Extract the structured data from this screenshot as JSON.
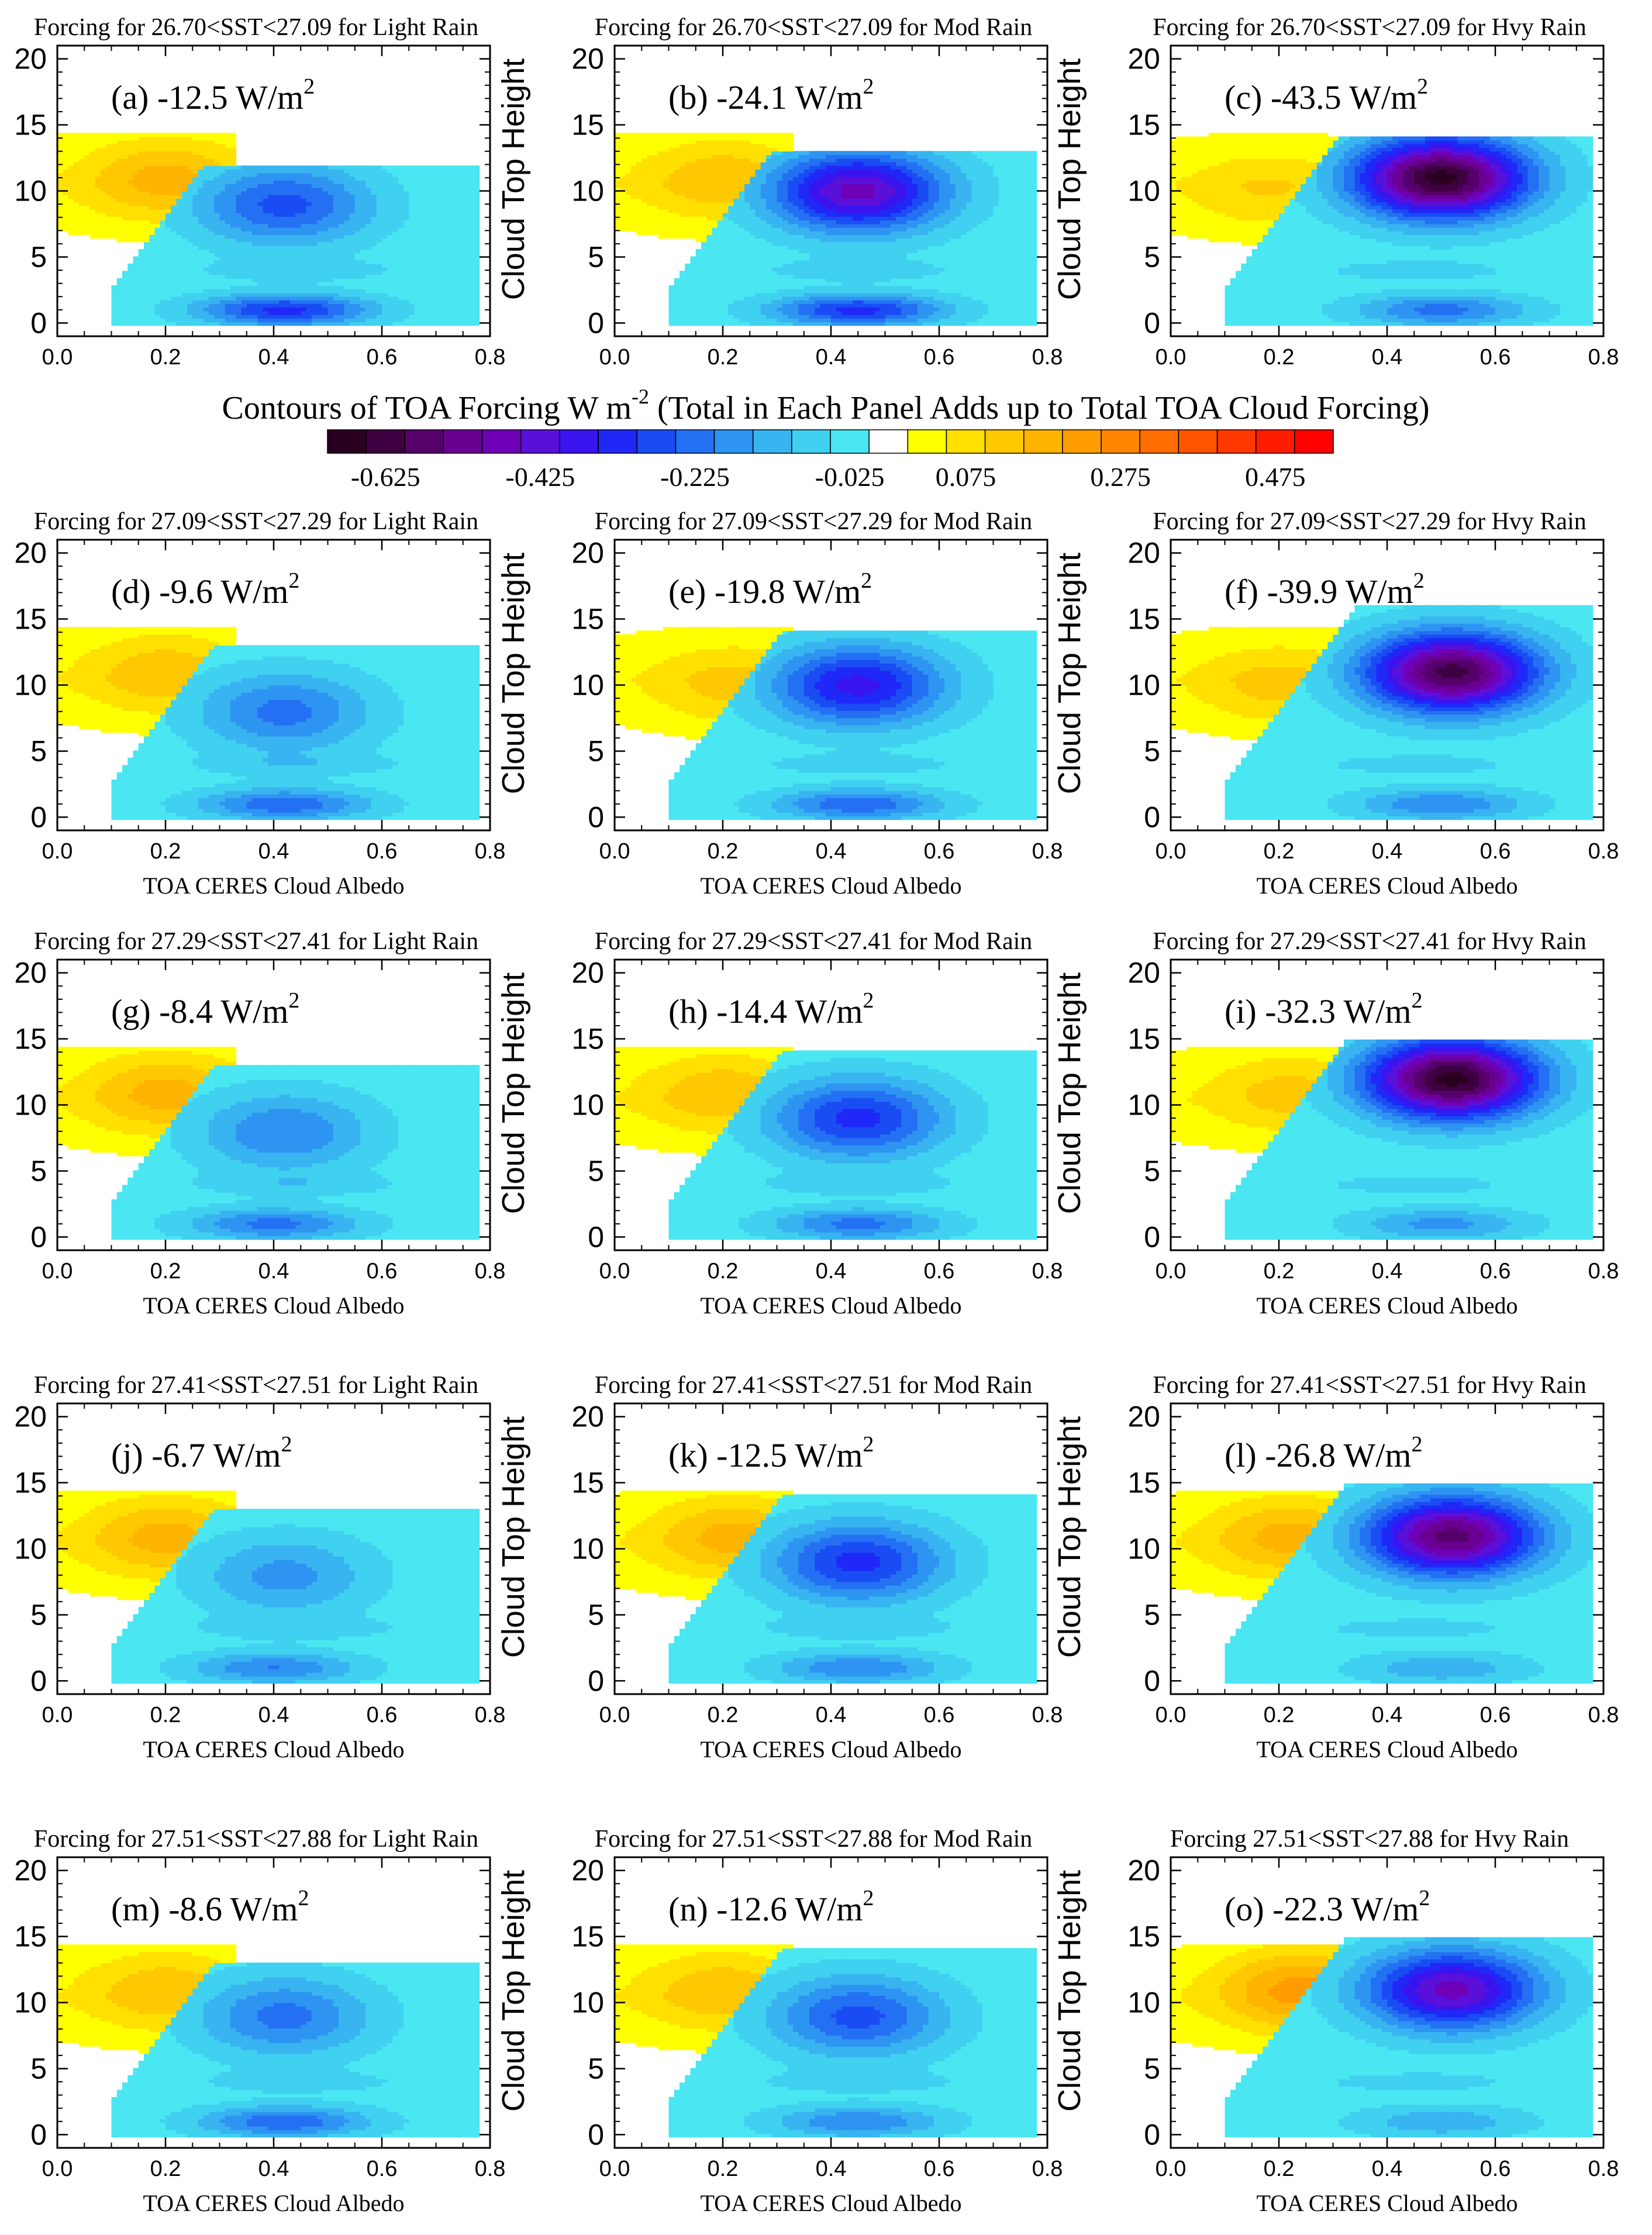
{
  "figure": {
    "colorbar": {
      "title": "Contours of TOA Forcing W m",
      "title_sup": "-2",
      "title_rest": " (Total in Each Panel Adds up to Total TOA Cloud Forcing)",
      "tick_labels": [
        "-0.625",
        "-0.425",
        "-0.225",
        "-0.025",
        "0.075",
        "0.275",
        "0.475"
      ],
      "colors": [
        "#2a0020",
        "#3f0042",
        "#55006b",
        "#6a0092",
        "#6e00b8",
        "#5a10d8",
        "#3a14ee",
        "#1f28f6",
        "#1a4cf4",
        "#2470f2",
        "#2e94f2",
        "#38b4f0",
        "#40d0f0",
        "#4ae6f2",
        "#ffffff",
        "#ffff00",
        "#ffe000",
        "#ffc800",
        "#ffb400",
        "#ff9c00",
        "#ff8400",
        "#ff6c00",
        "#ff5400",
        "#ff3800",
        "#ff1c00",
        "#ff0000"
      ]
    },
    "axes": {
      "xlabel": "TOA CERES Cloud Albedo",
      "ylabel": "Cloud Top Height",
      "xticks": [
        "0.0",
        "0.2",
        "0.4",
        "0.6",
        "0.8"
      ],
      "yticks": [
        "0",
        "5",
        "10",
        "15",
        "20"
      ]
    }
  },
  "chart_data": [
    {
      "type": "heatmap",
      "title": "Forcing for 26.70<SST<27.09 for Light Rain",
      "label": "(a) -12.5 W/m",
      "label_sup": "2",
      "total_forcing": -12.5,
      "sst_range": [
        26.7,
        27.09
      ],
      "rain": "Light",
      "xlabel": "",
      "ylabel": "",
      "xlim": [
        0,
        0.8
      ],
      "ylim": [
        -1,
        21
      ],
      "yellow_core": {
        "x": 0.2,
        "y": 11,
        "v": 0.15
      },
      "blue_cores": [
        {
          "x": 0.42,
          "y": 9,
          "v": -0.25
        },
        {
          "x": 0.42,
          "y": 1,
          "v": -0.3
        }
      ],
      "cloud_top": 12,
      "row": 0,
      "col": 0
    },
    {
      "type": "heatmap",
      "title": "Forcing for 26.70<SST<27.09 for Mod Rain",
      "label": "(b) -24.1 W/m",
      "label_sup": "2",
      "total_forcing": -24.1,
      "sst_range": [
        26.7,
        27.09
      ],
      "rain": "Mod",
      "xlabel": "",
      "ylabel": "Cloud Top Height",
      "xlim": [
        0,
        0.8
      ],
      "ylim": [
        -1,
        21
      ],
      "yellow_core": {
        "x": 0.2,
        "y": 11,
        "v": 0.12
      },
      "blue_cores": [
        {
          "x": 0.45,
          "y": 10,
          "v": -0.45
        },
        {
          "x": 0.45,
          "y": 1,
          "v": -0.3
        }
      ],
      "cloud_top": 13,
      "row": 0,
      "col": 1
    },
    {
      "type": "heatmap",
      "title": "Forcing for 26.70<SST<27.09 for Hvy Rain",
      "label": "(c) -43.5 W/m",
      "label_sup": "2",
      "total_forcing": -43.5,
      "sst_range": [
        26.7,
        27.09
      ],
      "rain": "Hvy",
      "xlabel": "",
      "ylabel": "Cloud Top Height",
      "xlim": [
        0,
        0.8
      ],
      "ylim": [
        -1,
        21
      ],
      "yellow_core": {
        "x": 0.18,
        "y": 10,
        "v": 0.08
      },
      "blue_cores": [
        {
          "x": 0.5,
          "y": 11,
          "v": -0.65
        },
        {
          "x": 0.5,
          "y": 1,
          "v": -0.2
        }
      ],
      "cloud_top": 14,
      "row": 0,
      "col": 2
    },
    {
      "type": "heatmap",
      "title": "Forcing for 27.09<SST<27.29 for Light Rain",
      "label": "(d) -9.6 W/m",
      "label_sup": "2",
      "total_forcing": -9.6,
      "sst_range": [
        27.09,
        27.29
      ],
      "rain": "Light",
      "xlabel": "TOA CERES Cloud Albedo",
      "ylabel": "",
      "xlim": [
        0,
        0.8
      ],
      "ylim": [
        -1,
        21
      ],
      "yellow_core": {
        "x": 0.2,
        "y": 11,
        "v": 0.12
      },
      "blue_cores": [
        {
          "x": 0.42,
          "y": 8,
          "v": -0.2
        },
        {
          "x": 0.42,
          "y": 1,
          "v": -0.22
        }
      ],
      "cloud_top": 13,
      "row": 1,
      "col": 0
    },
    {
      "type": "heatmap",
      "title": "Forcing for 27.09<SST<27.29 for Mod Rain",
      "label": "(e) -19.8 W/m",
      "label_sup": "2",
      "total_forcing": -19.8,
      "sst_range": [
        27.09,
        27.29
      ],
      "rain": "Mod",
      "xlabel": "TOA CERES Cloud Albedo",
      "ylabel": "Cloud Top Height",
      "xlim": [
        0,
        0.8
      ],
      "ylim": [
        -1,
        21
      ],
      "yellow_core": {
        "x": 0.22,
        "y": 10,
        "v": 0.1
      },
      "blue_cores": [
        {
          "x": 0.45,
          "y": 10,
          "v": -0.35
        },
        {
          "x": 0.45,
          "y": 1,
          "v": -0.22
        }
      ],
      "cloud_top": 14,
      "row": 1,
      "col": 1
    },
    {
      "type": "heatmap",
      "title": "Forcing for 27.09<SST<27.29 for Hvy Rain",
      "label": "(f) -39.9 W/m",
      "label_sup": "2",
      "total_forcing": -39.9,
      "sst_range": [
        27.09,
        27.29
      ],
      "rain": "Hvy",
      "xlabel": "TOA CERES Cloud Albedo",
      "ylabel": "Cloud Top Height",
      "xlim": [
        0,
        0.8
      ],
      "ylim": [
        -1,
        21
      ],
      "yellow_core": {
        "x": 0.2,
        "y": 10,
        "v": 0.1
      },
      "blue_cores": [
        {
          "x": 0.52,
          "y": 11,
          "v": -0.6
        },
        {
          "x": 0.5,
          "y": 1,
          "v": -0.18
        }
      ],
      "cloud_top": 16,
      "row": 1,
      "col": 2
    },
    {
      "type": "heatmap",
      "title": "Forcing for 27.29<SST<27.41 for Light Rain",
      "label": "(g) -8.4 W/m",
      "label_sup": "2",
      "total_forcing": -8.4,
      "sst_range": [
        27.29,
        27.41
      ],
      "rain": "Light",
      "xlabel": "TOA CERES Cloud Albedo",
      "ylabel": "",
      "xlim": [
        0,
        0.8
      ],
      "ylim": [
        -1,
        21
      ],
      "yellow_core": {
        "x": 0.2,
        "y": 11,
        "v": 0.15
      },
      "blue_cores": [
        {
          "x": 0.42,
          "y": 8,
          "v": -0.18
        },
        {
          "x": 0.4,
          "y": 1,
          "v": -0.2
        }
      ],
      "cloud_top": 13,
      "row": 2,
      "col": 0
    },
    {
      "type": "heatmap",
      "title": "Forcing for 27.29<SST<27.41 for Mod Rain",
      "label": "(h) -14.4 W/m",
      "label_sup": "2",
      "total_forcing": -14.4,
      "sst_range": [
        27.29,
        27.41
      ],
      "rain": "Mod",
      "xlabel": "TOA CERES Cloud Albedo",
      "ylabel": "Cloud Top Height",
      "xlim": [
        0,
        0.8
      ],
      "ylim": [
        -1,
        21
      ],
      "yellow_core": {
        "x": 0.2,
        "y": 11,
        "v": 0.12
      },
      "blue_cores": [
        {
          "x": 0.45,
          "y": 9,
          "v": -0.3
        },
        {
          "x": 0.45,
          "y": 1,
          "v": -0.2
        }
      ],
      "cloud_top": 14,
      "row": 2,
      "col": 1
    },
    {
      "type": "heatmap",
      "title": "Forcing for 27.29<SST<27.41 for Hvy Rain",
      "label": "(i) -32.3 W/m",
      "label_sup": "2",
      "total_forcing": -32.3,
      "sst_range": [
        27.29,
        27.41
      ],
      "rain": "Hvy",
      "xlabel": "TOA CERES Cloud Albedo",
      "ylabel": "Cloud Top Height",
      "xlim": [
        0,
        0.8
      ],
      "ylim": [
        -1,
        21
      ],
      "yellow_core": {
        "x": 0.22,
        "y": 11,
        "v": 0.1
      },
      "blue_cores": [
        {
          "x": 0.52,
          "y": 12,
          "v": -0.65
        },
        {
          "x": 0.5,
          "y": 1,
          "v": -0.15
        }
      ],
      "cloud_top": 15,
      "row": 2,
      "col": 2
    },
    {
      "type": "heatmap",
      "title": "Forcing for 27.41<SST<27.51 for Light Rain",
      "label": "(j) -6.7 W/m",
      "label_sup": "2",
      "total_forcing": -6.7,
      "sst_range": [
        27.41,
        27.51
      ],
      "rain": "Light",
      "xlabel": "TOA CERES Cloud Albedo",
      "ylabel": "",
      "xlim": [
        0,
        0.8
      ],
      "ylim": [
        -1,
        21
      ],
      "yellow_core": {
        "x": 0.2,
        "y": 11,
        "v": 0.15
      },
      "blue_cores": [
        {
          "x": 0.42,
          "y": 8,
          "v": -0.15
        },
        {
          "x": 0.4,
          "y": 1,
          "v": -0.18
        }
      ],
      "cloud_top": 13,
      "row": 3,
      "col": 0
    },
    {
      "type": "heatmap",
      "title": "Forcing for 27.41<SST<27.51 for Mod Rain",
      "label": "(k) -12.5 W/m",
      "label_sup": "2",
      "total_forcing": -12.5,
      "sst_range": [
        27.41,
        27.51
      ],
      "rain": "Mod",
      "xlabel": "TOA CERES Cloud Albedo",
      "ylabel": "Cloud Top Height",
      "xlim": [
        0,
        0.8
      ],
      "ylim": [
        -1,
        21
      ],
      "yellow_core": {
        "x": 0.22,
        "y": 11,
        "v": 0.15
      },
      "blue_cores": [
        {
          "x": 0.45,
          "y": 9,
          "v": -0.3
        },
        {
          "x": 0.45,
          "y": 1,
          "v": -0.18
        }
      ],
      "cloud_top": 14,
      "row": 3,
      "col": 1
    },
    {
      "type": "heatmap",
      "title": "Forcing for 27.41<SST<27.51 for Hvy Rain",
      "label": "(l) -26.8 W/m",
      "label_sup": "2",
      "total_forcing": -26.8,
      "sst_range": [
        27.41,
        27.51
      ],
      "rain": "Hvy",
      "xlabel": "TOA CERES Cloud Albedo",
      "ylabel": "Cloud Top Height",
      "xlim": [
        0,
        0.8
      ],
      "ylim": [
        -1,
        21
      ],
      "yellow_core": {
        "x": 0.22,
        "y": 11,
        "v": 0.15
      },
      "blue_cores": [
        {
          "x": 0.52,
          "y": 11,
          "v": -0.55
        },
        {
          "x": 0.5,
          "y": 1,
          "v": -0.12
        }
      ],
      "cloud_top": 15,
      "row": 3,
      "col": 2
    },
    {
      "type": "heatmap",
      "title": "Forcing for 27.51<SST<27.88 for Light Rain",
      "label": "(m) -8.6 W/m",
      "label_sup": "2",
      "total_forcing": -8.6,
      "sst_range": [
        27.51,
        27.88
      ],
      "rain": "Light",
      "xlabel": "TOA CERES Cloud Albedo",
      "ylabel": "",
      "xlim": [
        0,
        0.8
      ],
      "ylim": [
        -1,
        21
      ],
      "yellow_core": {
        "x": 0.2,
        "y": 11,
        "v": 0.12
      },
      "blue_cores": [
        {
          "x": 0.42,
          "y": 9,
          "v": -0.2
        },
        {
          "x": 0.42,
          "y": 1,
          "v": -0.22
        }
      ],
      "cloud_top": 13,
      "row": 4,
      "col": 0
    },
    {
      "type": "heatmap",
      "title": "Forcing for 27.51<SST<27.88 for Mod Rain",
      "label": "(n) -12.6 W/m",
      "label_sup": "2",
      "total_forcing": -12.6,
      "sst_range": [
        27.51,
        27.88
      ],
      "rain": "Mod",
      "xlabel": "TOA CERES Cloud Albedo",
      "ylabel": "Cloud Top Height",
      "xlim": [
        0,
        0.8
      ],
      "ylim": [
        -1,
        21
      ],
      "yellow_core": {
        "x": 0.2,
        "y": 11,
        "v": 0.12
      },
      "blue_cores": [
        {
          "x": 0.45,
          "y": 9,
          "v": -0.25
        },
        {
          "x": 0.45,
          "y": 1,
          "v": -0.18
        }
      ],
      "cloud_top": 14,
      "row": 4,
      "col": 1
    },
    {
      "type": "heatmap",
      "title": "Forcing 27.51<SST<27.88 for Hvy Rain",
      "label": "(o) -22.3 W/m",
      "label_sup": "2",
      "total_forcing": -22.3,
      "sst_range": [
        27.51,
        27.88
      ],
      "rain": "Hvy",
      "xlabel": "TOA CERES Cloud Albedo",
      "ylabel": "Cloud Top Height",
      "xlim": [
        0,
        0.8
      ],
      "ylim": [
        -1,
        21
      ],
      "yellow_core": {
        "x": 0.24,
        "y": 11,
        "v": 0.2
      },
      "blue_cores": [
        {
          "x": 0.52,
          "y": 11,
          "v": -0.45
        },
        {
          "x": 0.5,
          "y": 1,
          "v": -0.12
        }
      ],
      "cloud_top": 15,
      "row": 4,
      "col": 2
    }
  ]
}
